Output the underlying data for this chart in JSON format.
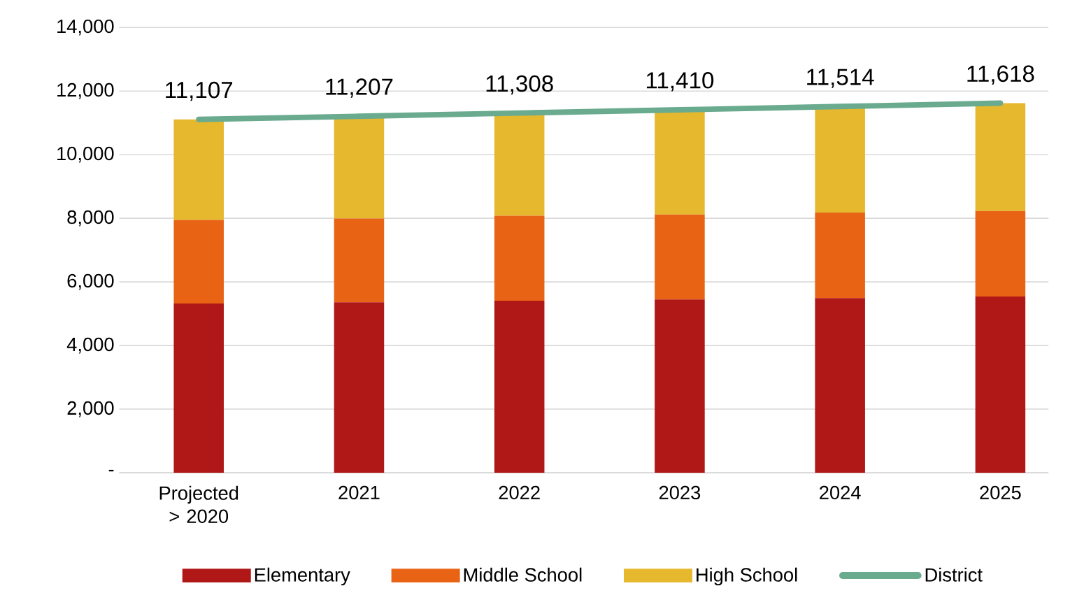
{
  "chart_data": {
    "type": "bar",
    "stacked": true,
    "legend": "bottom",
    "grid": "y",
    "categories": [
      "Projected > 2020",
      "2021",
      "2022",
      "2023",
      "2024",
      "2025"
    ],
    "ylim": [
      0,
      14000
    ],
    "yticks": [
      {
        "value": 0,
        "label": "-"
      },
      {
        "value": 2000,
        "label": "2,000"
      },
      {
        "value": 4000,
        "label": "4,000"
      },
      {
        "value": 6000,
        "label": "6,000"
      },
      {
        "value": 8000,
        "label": "8,000"
      },
      {
        "value": 10000,
        "label": "10,000"
      },
      {
        "value": 12000,
        "label": "12,000"
      },
      {
        "value": 14000,
        "label": "14,000"
      }
    ],
    "series": [
      {
        "name": "Elementary",
        "color": "#b01717",
        "values": [
          5320,
          5360,
          5410,
          5450,
          5490,
          5540
        ]
      },
      {
        "name": "Middle School",
        "color": "#e96314",
        "values": [
          2630,
          2630,
          2670,
          2670,
          2690,
          2690
        ]
      },
      {
        "name": "High School",
        "color": "#e6b82e",
        "values": [
          3160,
          3220,
          3230,
          3290,
          3330,
          3390
        ]
      },
      {
        "name": "District",
        "type": "line",
        "color": "#6aab8f",
        "values": [
          11107,
          11207,
          11308,
          11410,
          11514,
          11618
        ],
        "value_labels": [
          "11,107",
          "11,207",
          "11,308",
          "11,410",
          "11,514",
          "11,618"
        ]
      }
    ]
  }
}
